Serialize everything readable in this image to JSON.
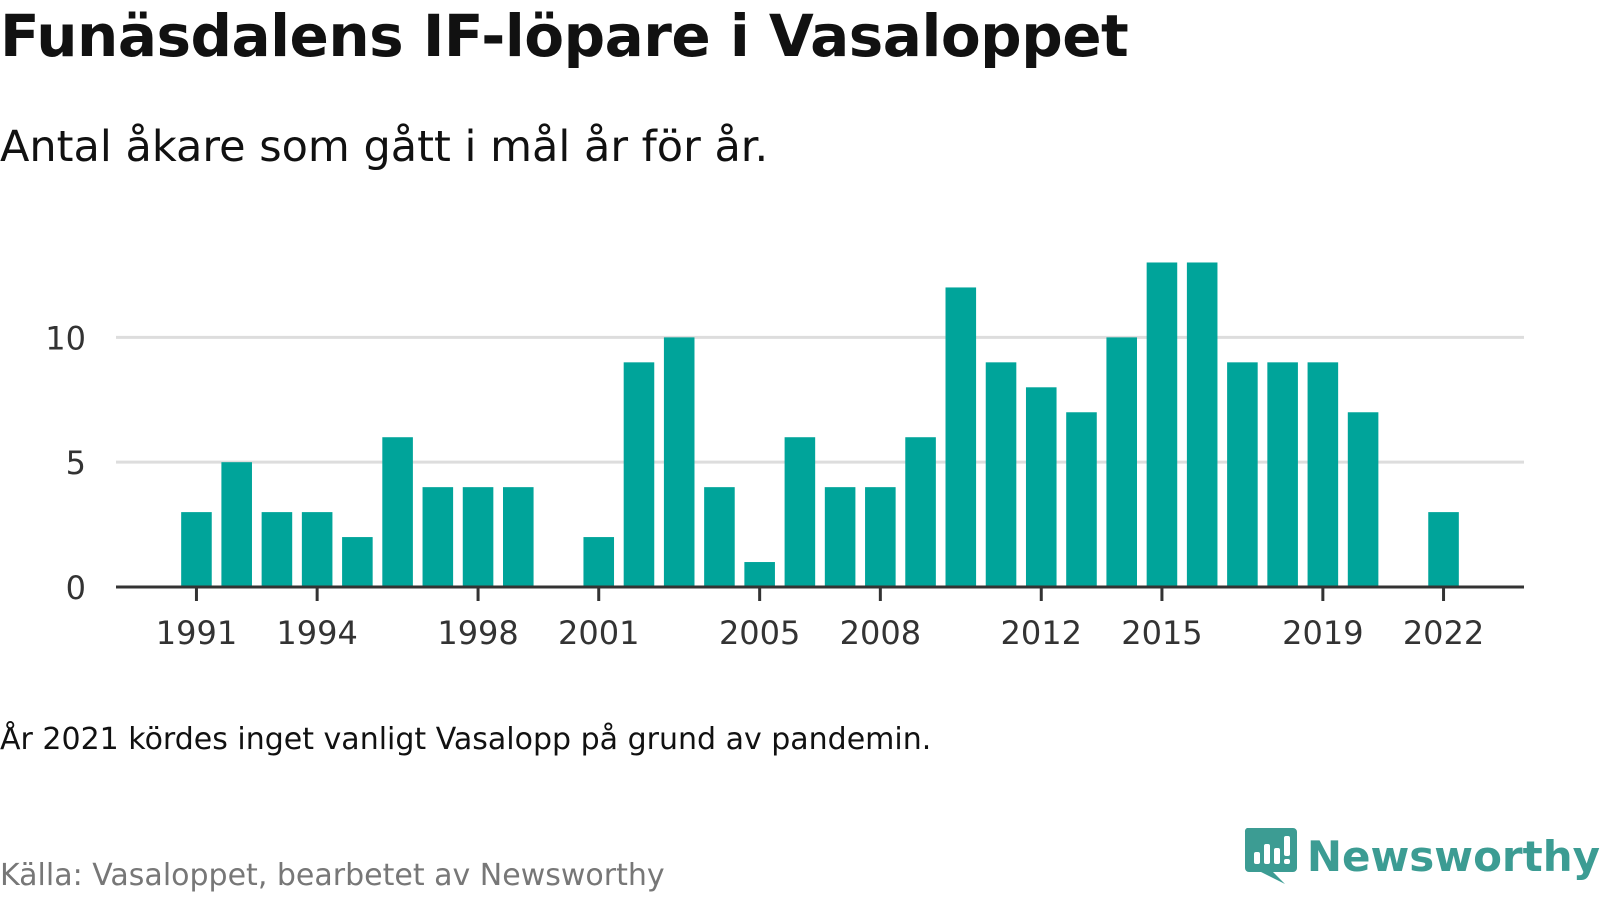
{
  "header": {
    "title": "Funäsdalens IF-löpare i Vasaloppet",
    "subtitle": "Antal åkare som gått i mål år för år."
  },
  "footer": {
    "note": "År 2021 kördes inget vanligt Vasalopp på grund av pandemin.",
    "source": "Källa: Vasaloppet, bearbetet av Newsworthy",
    "brand": "Newsworthy"
  },
  "colors": {
    "bar": "#00a49a",
    "grid": "#dddddd",
    "axis": "#333333",
    "brand": "#3c9c93"
  },
  "icons": {
    "brand_logo": "newsworthy-chat-bars-icon"
  },
  "chart_data": {
    "type": "bar",
    "x": [
      1991,
      1992,
      1993,
      1994,
      1995,
      1996,
      1997,
      1998,
      1999,
      2000,
      2001,
      2002,
      2003,
      2004,
      2005,
      2006,
      2007,
      2008,
      2009,
      2010,
      2011,
      2012,
      2013,
      2014,
      2015,
      2016,
      2017,
      2018,
      2019,
      2020,
      2021,
      2022
    ],
    "values": [
      3,
      5,
      3,
      3,
      2,
      6,
      4,
      4,
      4,
      0,
      2,
      9,
      10,
      4,
      1,
      6,
      4,
      4,
      6,
      12,
      9,
      8,
      7,
      10,
      13,
      13,
      9,
      9,
      9,
      7,
      0,
      3
    ],
    "x_ticks": [
      "1991",
      "1994",
      "1998",
      "2001",
      "2005",
      "2008",
      "2012",
      "2015",
      "2019",
      "2022"
    ],
    "y_ticks": [
      "0",
      "5",
      "10"
    ],
    "ylim": [
      0,
      13.5
    ],
    "xlim": [
      1989,
      2024
    ],
    "grid": true,
    "xlabel": "",
    "ylabel": ""
  }
}
